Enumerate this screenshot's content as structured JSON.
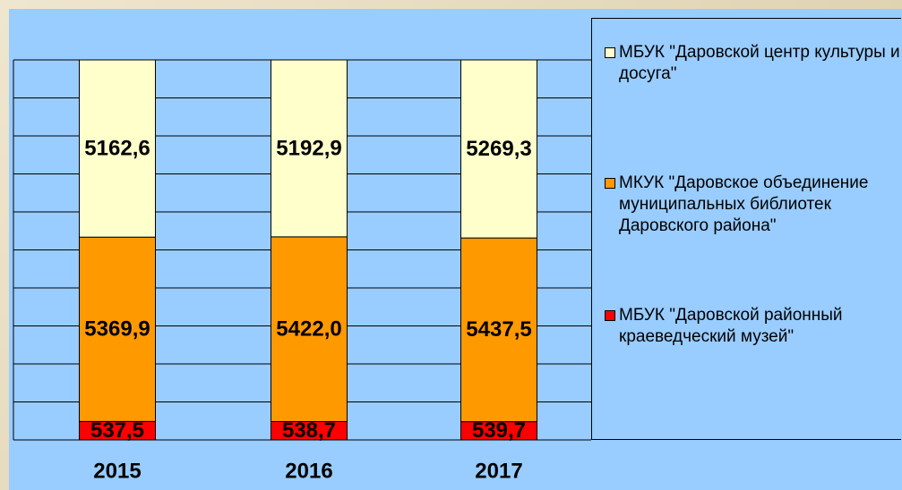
{
  "chart_data": {
    "type": "stacked_percent_bar",
    "categories": [
      "2015",
      "2016",
      "2017"
    ],
    "series": [
      {
        "name": "МБУК \"Даровской центр культуры и досуга\"",
        "color": "#ffffcc",
        "values": [
          5162.6,
          5192.9,
          5269.3
        ],
        "value_labels": [
          "5162,6",
          "5192,9",
          "5269,3"
        ]
      },
      {
        "name": "МКУК \"Даровское объединение муниципальных библиотек Даровского района\"",
        "color": "#ff9900",
        "values": [
          5369.9,
          5422.0,
          5437.5
        ],
        "value_labels": [
          "5369,9",
          "5422,0",
          "5437,5"
        ]
      },
      {
        "name": "МБУК \"Даровской районный краеведческий музей\"",
        "color": "#ff0000",
        "values": [
          537.5,
          538.7,
          539.7
        ],
        "value_labels": [
          "537,5",
          "538,7",
          "539,7"
        ]
      }
    ],
    "ylim": [
      0,
      100
    ],
    "yticks": [
      0,
      10,
      20,
      30,
      40,
      50,
      60,
      70,
      80,
      90,
      100
    ],
    "grid": true,
    "legend": "right"
  }
}
